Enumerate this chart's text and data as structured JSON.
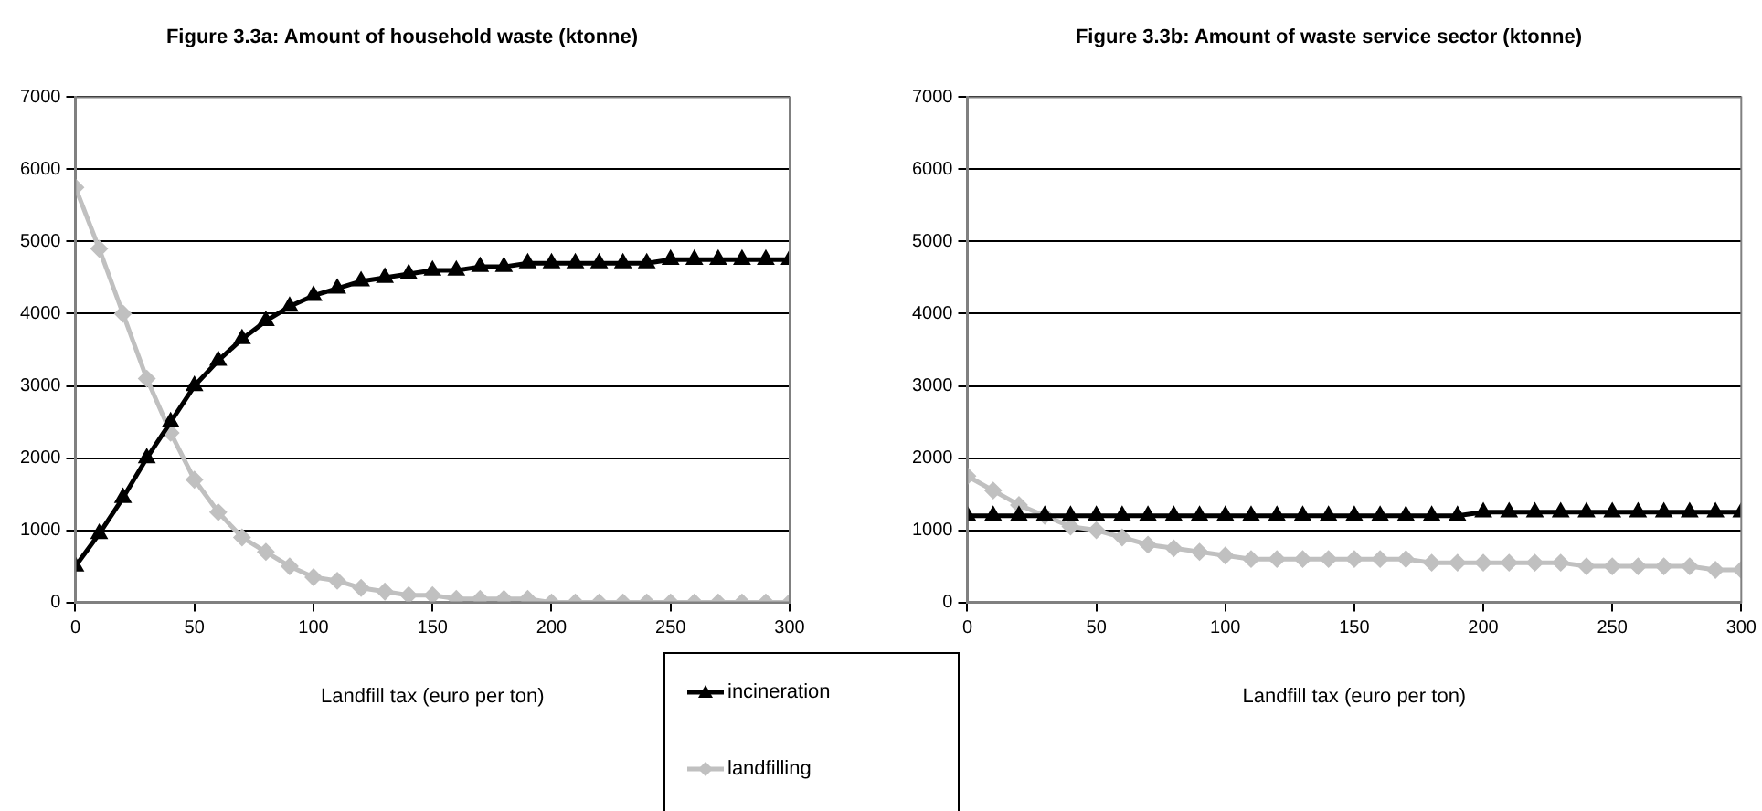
{
  "chart_data": [
    {
      "type": "line",
      "title": "Figure 3.3a: Amount of household waste (ktonne)",
      "xlabel": "Landfill tax (euro per ton)",
      "x": [
        0,
        10,
        20,
        30,
        40,
        50,
        60,
        70,
        80,
        90,
        100,
        110,
        120,
        130,
        140,
        150,
        160,
        170,
        180,
        190,
        200,
        210,
        220,
        230,
        240,
        250,
        260,
        270,
        280,
        290,
        300
      ],
      "xlim": [
        0,
        300
      ],
      "xticks": [
        0,
        50,
        100,
        150,
        200,
        250,
        300
      ],
      "ylim": [
        0,
        7000
      ],
      "yticks": [
        0,
        1000,
        2000,
        3000,
        4000,
        5000,
        6000,
        7000
      ],
      "grid": "y",
      "legend": "bottom",
      "series": [
        {
          "name": "incineration",
          "color": "#000000",
          "marker": "triangle",
          "values": [
            500,
            950,
            1450,
            2000,
            2500,
            3000,
            3350,
            3650,
            3900,
            4100,
            4250,
            4350,
            4450,
            4500,
            4550,
            4600,
            4600,
            4650,
            4650,
            4700,
            4700,
            4700,
            4700,
            4700,
            4700,
            4750,
            4750,
            4750,
            4750,
            4750,
            4750
          ]
        },
        {
          "name": "landfilling",
          "color": "#c0c0c0",
          "marker": "diamond",
          "values": [
            5750,
            4900,
            4000,
            3100,
            2350,
            1700,
            1250,
            900,
            700,
            500,
            350,
            300,
            200,
            150,
            100,
            100,
            50,
            50,
            50,
            50,
            0,
            0,
            0,
            0,
            0,
            0,
            0,
            0,
            0,
            0,
            0
          ]
        }
      ]
    },
    {
      "type": "line",
      "title": "Figure 3.3b: Amount of waste service sector (ktonne)",
      "xlabel": "Landfill tax (euro per ton)",
      "x": [
        0,
        10,
        20,
        30,
        40,
        50,
        60,
        70,
        80,
        90,
        100,
        110,
        120,
        130,
        140,
        150,
        160,
        170,
        180,
        190,
        200,
        210,
        220,
        230,
        240,
        250,
        260,
        270,
        280,
        290,
        300
      ],
      "xlim": [
        0,
        300
      ],
      "xticks": [
        0,
        50,
        100,
        150,
        200,
        250,
        300
      ],
      "ylim": [
        0,
        7000
      ],
      "yticks": [
        0,
        1000,
        2000,
        3000,
        4000,
        5000,
        6000,
        7000
      ],
      "grid": "y",
      "series": [
        {
          "color": "#000000",
          "marker": "triangle",
          "values": [
            1200,
            1200,
            1200,
            1200,
            1200,
            1200,
            1200,
            1200,
            1200,
            1200,
            1200,
            1200,
            1200,
            1200,
            1200,
            1200,
            1200,
            1200,
            1200,
            1200,
            1250,
            1250,
            1250,
            1250,
            1250,
            1250,
            1250,
            1250,
            1250,
            1250,
            1250
          ]
        },
        {
          "color": "#c0c0c0",
          "marker": "diamond",
          "values": [
            1750,
            1550,
            1350,
            1200,
            1050,
            1000,
            900,
            800,
            750,
            700,
            650,
            600,
            600,
            600,
            600,
            600,
            600,
            600,
            550,
            550,
            550,
            550,
            550,
            550,
            500,
            500,
            500,
            500,
            500,
            450,
            450
          ]
        }
      ]
    }
  ]
}
